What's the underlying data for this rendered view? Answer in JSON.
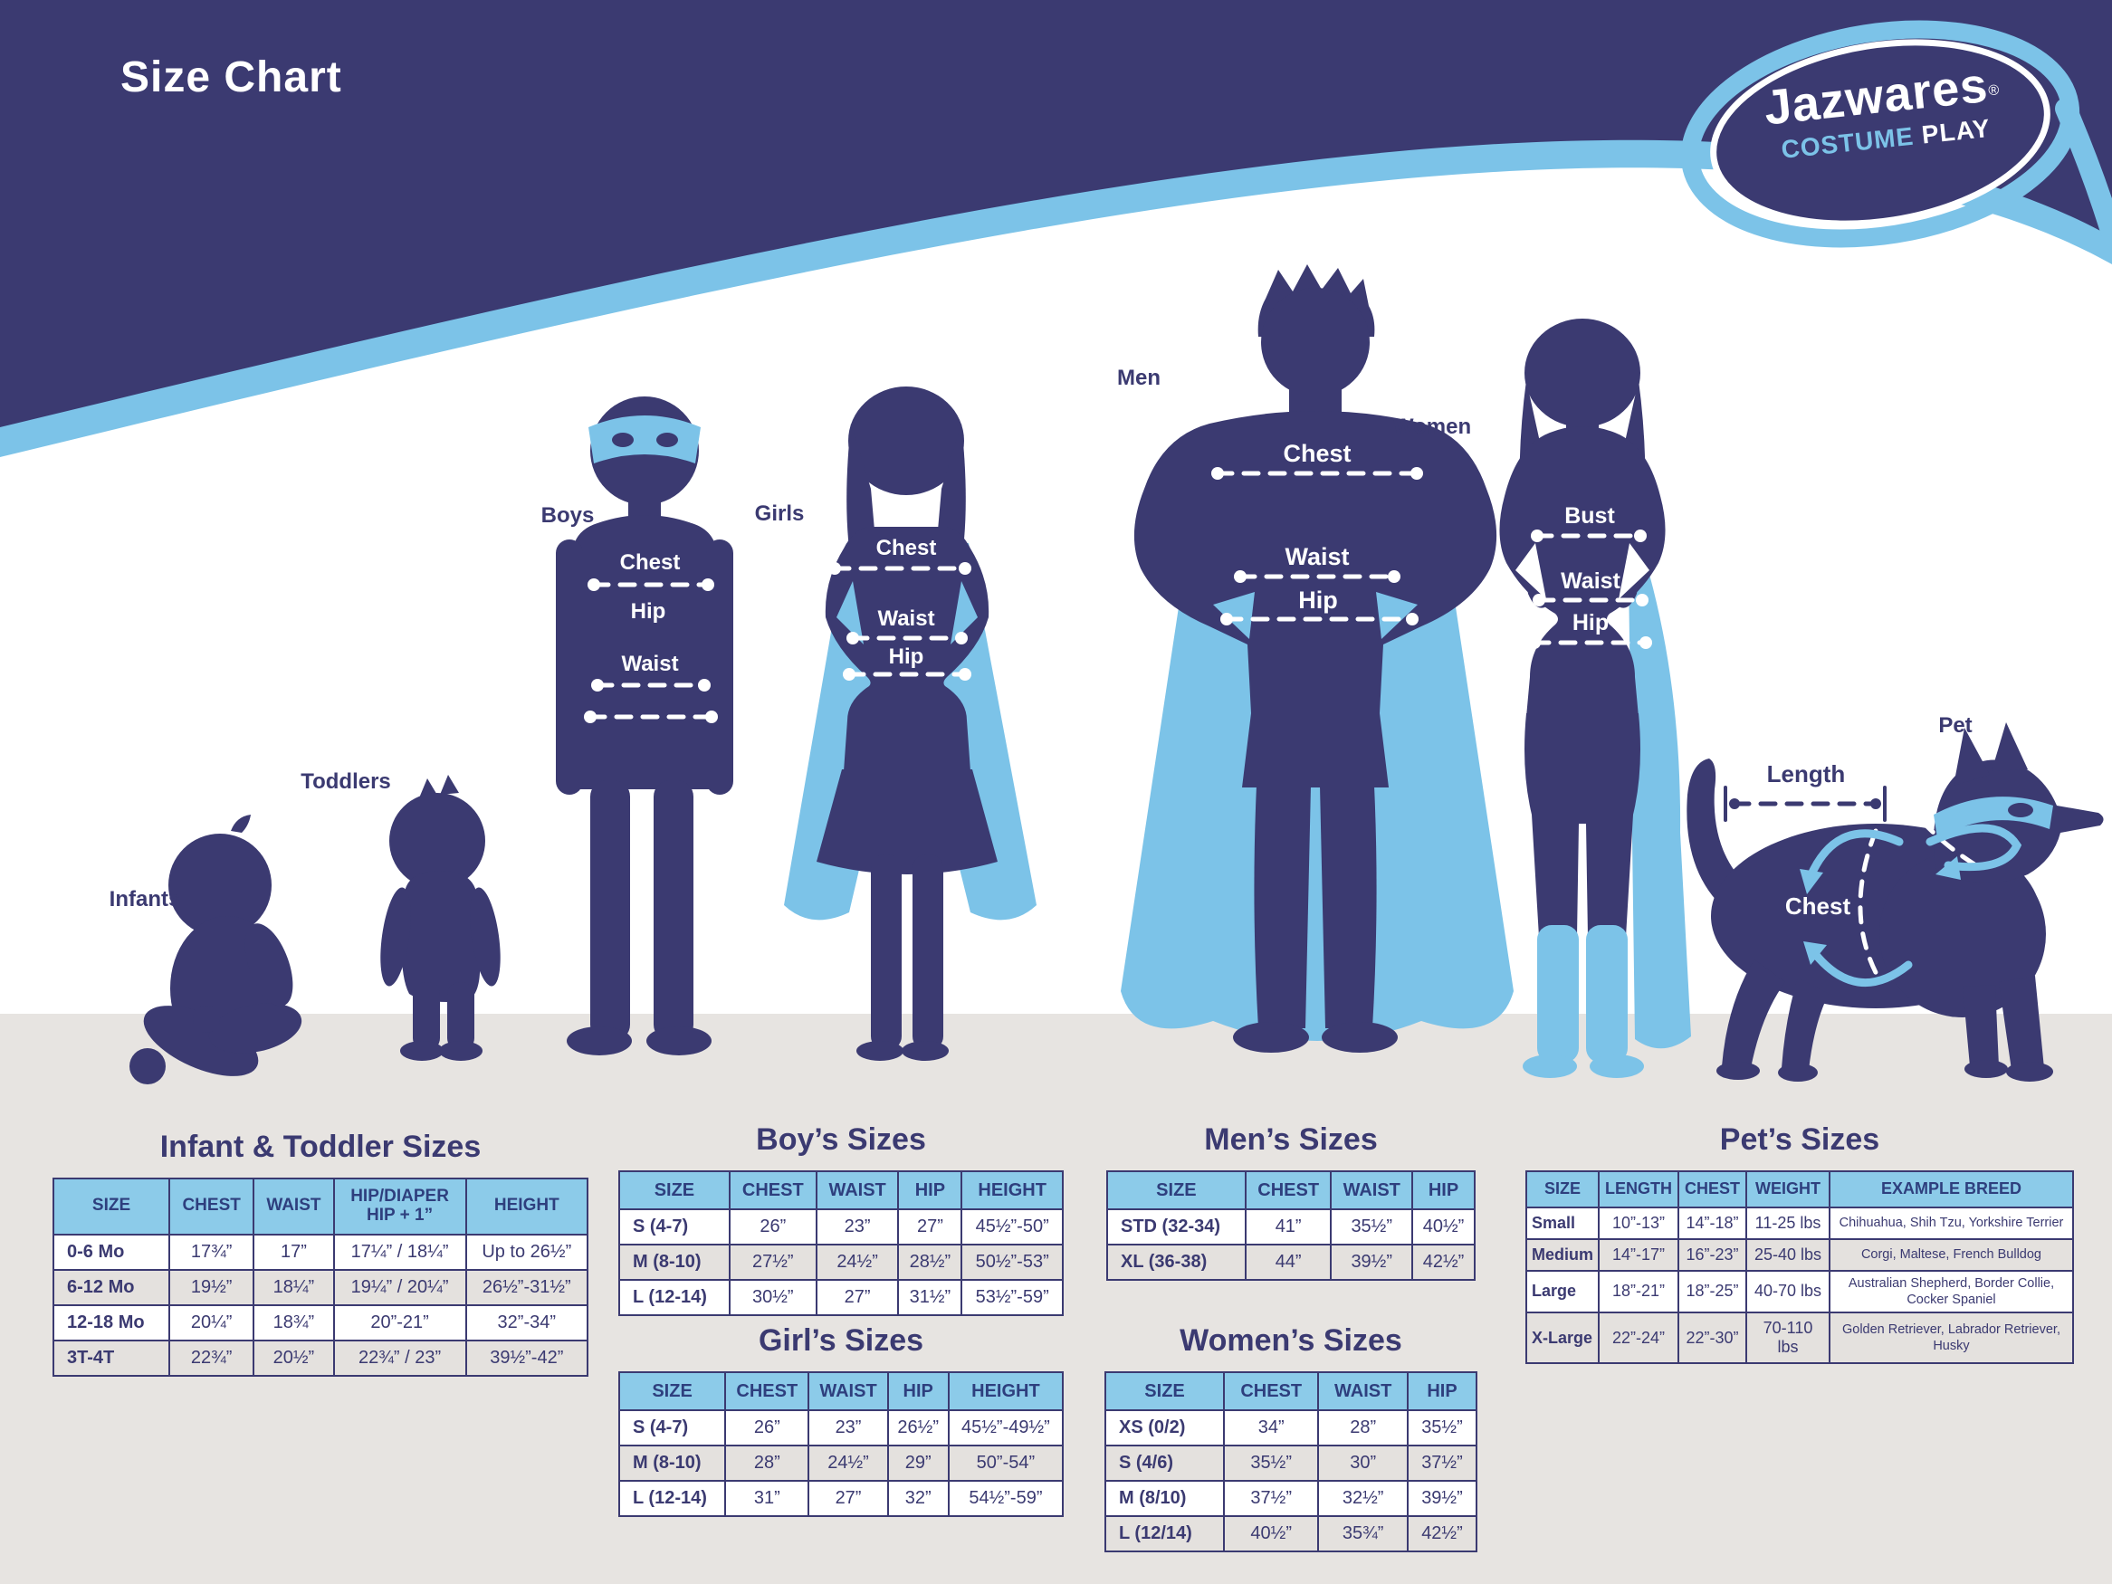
{
  "page": {
    "title": "Size Chart"
  },
  "logo": {
    "brand": "Jazwares",
    "mark": "®",
    "tagline_1": "COSTUME",
    "tagline_2": "PLAY"
  },
  "colors": {
    "navy": "#3b3a71",
    "navy_deep": "#2e3f7e",
    "light_blue": "#7cc3e8",
    "header_blue": "#8ccbe9",
    "floor_gray": "#e7e4e1",
    "row_alt": "#e4e1de",
    "white": "#ffffff"
  },
  "figures": {
    "infants": {
      "label": "Infants"
    },
    "toddlers": {
      "label": "Toddlers"
    },
    "boys": {
      "label": "Boys",
      "chest": "Chest",
      "hip": "Hip",
      "waist": "Waist"
    },
    "girls": {
      "label": "Girls",
      "chest": "Chest",
      "waist": "Waist",
      "hip": "Hip"
    },
    "men": {
      "label": "Men",
      "chest": "Chest",
      "waist": "Waist",
      "hip": "Hip"
    },
    "women": {
      "label": "Women",
      "bust": "Bust",
      "waist": "Waist",
      "hip": "Hip"
    },
    "pet": {
      "label": "Pet",
      "length": "Length",
      "chest": "Chest"
    }
  },
  "tables": {
    "infant_toddler": {
      "title": "Infant & Toddler Sizes",
      "headers": [
        "SIZE",
        "CHEST",
        "WAIST",
        "HIP/DIAPER\nHIP + 1”",
        "HEIGHT"
      ],
      "rows": [
        [
          "0-6 Mo",
          "17¾”",
          "17”",
          "17¼” / 18¼”",
          "Up to 26½”"
        ],
        [
          "6-12 Mo",
          "19½”",
          "18¼”",
          "19¼” / 20¼”",
          "26½”-31½”"
        ],
        [
          "12-18 Mo",
          "20¼”",
          "18¾”",
          "20”-21”",
          "32”-34”"
        ],
        [
          "3T-4T",
          "22¾”",
          "20½”",
          "22¾” / 23”",
          "39½”-42”"
        ]
      ]
    },
    "boys": {
      "title": "Boy’s Sizes",
      "headers": [
        "SIZE",
        "CHEST",
        "WAIST",
        "HIP",
        "HEIGHT"
      ],
      "rows": [
        [
          "S (4-7)",
          "26”",
          "23”",
          "27”",
          "45½”-50”"
        ],
        [
          "M (8-10)",
          "27½”",
          "24½”",
          "28½”",
          "50½”-53”"
        ],
        [
          "L (12-14)",
          "30½”",
          "27”",
          "31½”",
          "53½”-59”"
        ]
      ]
    },
    "girls": {
      "title": "Girl’s Sizes",
      "headers": [
        "SIZE",
        "CHEST",
        "WAIST",
        "HIP",
        "HEIGHT"
      ],
      "rows": [
        [
          "S (4-7)",
          "26”",
          "23”",
          "26½”",
          "45½”-49½”"
        ],
        [
          "M (8-10)",
          "28”",
          "24½”",
          "29”",
          "50”-54”"
        ],
        [
          "L (12-14)",
          "31”",
          "27”",
          "32”",
          "54½”-59”"
        ]
      ]
    },
    "mens": {
      "title": "Men’s Sizes",
      "headers": [
        "SIZE",
        "CHEST",
        "WAIST",
        "HIP"
      ],
      "rows": [
        [
          "STD (32-34)",
          "41”",
          "35½”",
          "40½”"
        ],
        [
          "XL (36-38)",
          "44”",
          "39½”",
          "42½”"
        ]
      ]
    },
    "womens": {
      "title": "Women’s Sizes",
      "headers": [
        "SIZE",
        "CHEST",
        "WAIST",
        "HIP"
      ],
      "rows": [
        [
          "XS (0/2)",
          "34”",
          "28”",
          "35½”"
        ],
        [
          "S (4/6)",
          "35½”",
          "30”",
          "37½”"
        ],
        [
          "M (8/10)",
          "37½”",
          "32½”",
          "39½”"
        ],
        [
          "L (12/14)",
          "40½”",
          "35¾”",
          "42½”"
        ]
      ]
    },
    "pets": {
      "title": "Pet’s Sizes",
      "headers": [
        "SIZE",
        "LENGTH",
        "CHEST",
        "WEIGHT",
        "EXAMPLE BREED"
      ],
      "rows": [
        [
          "Small",
          "10”-13”",
          "14”-18”",
          "11-25 lbs",
          "Chihuahua, Shih Tzu, Yorkshire Terrier"
        ],
        [
          "Medium",
          "14”-17”",
          "16”-23”",
          "25-40 lbs",
          "Corgi, Maltese, French Bulldog"
        ],
        [
          "Large",
          "18”-21”",
          "18”-25”",
          "40-70 lbs",
          "Australian Shepherd, Border Collie, Cocker Spaniel"
        ],
        [
          "X-Large",
          "22”-24”",
          "22”-30”",
          "70-110 lbs",
          "Golden Retriever, Labrador Retriever, Husky"
        ]
      ]
    }
  }
}
